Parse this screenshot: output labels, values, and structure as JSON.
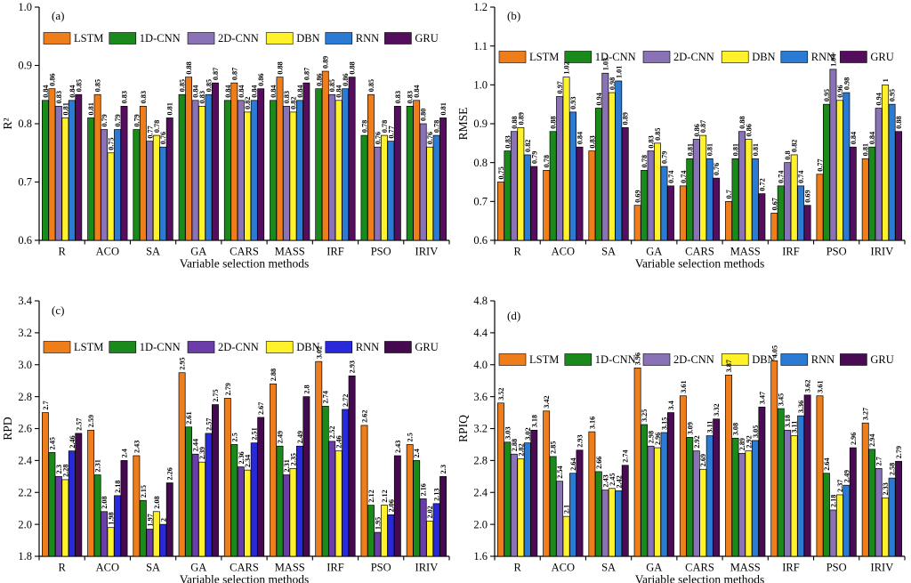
{
  "figure": {
    "background": "#ffffff",
    "panel_labels": [
      "(a)",
      "(b)",
      "(c)",
      "(d)"
    ]
  },
  "chart_data": [
    {
      "id": "a",
      "type": "bar",
      "panel_label": "(a)",
      "ylabel": "R²",
      "xlabel": "Variable selection methods",
      "ylim": [
        0.6,
        1.0
      ],
      "ytick_step": 0.1,
      "grid": false,
      "legend_position": "top-inside-horizontal",
      "categories": [
        "R",
        "ACO",
        "SA",
        "GA",
        "CARS",
        "MASS",
        "IRF",
        "PSO",
        "IRIV"
      ],
      "legend": [
        "LSTM",
        "1D-CNN",
        "2D-CNN",
        "DBN",
        "RNN",
        "GRU"
      ],
      "colors": {
        "LSTM": "#EF7D1A",
        "1D-CNN": "#1A8A1A",
        "2D-CNN": "#8973B6",
        "DBN": "#FFF12A",
        "RNN": "#2B7BD4",
        "GRU": "#550D5E"
      },
      "series": [
        {
          "name": "1D-CNN",
          "values": [
            "0.84",
            "0.81",
            "0.79",
            "0.85",
            "0.84",
            "0.84",
            "0.86",
            "0.78",
            "0.83"
          ]
        },
        {
          "name": "LSTM",
          "values": [
            "0.86",
            "0.85",
            "0.83",
            "0.88",
            "0.87",
            "0.88",
            "0.89",
            "0.85",
            "0.84"
          ]
        },
        {
          "name": "2D-CNN",
          "values": [
            "0.83",
            "0.79",
            "0.77",
            "0.84",
            "0.84",
            "0.83",
            "0.85",
            "0.76",
            "0.80"
          ]
        },
        {
          "name": "DBN",
          "values": [
            "0.81",
            "0.75",
            "0.78",
            "0.83",
            "0.82",
            "0.82",
            "0.84",
            "0.78",
            "0.76"
          ]
        },
        {
          "name": "RNN",
          "values": [
            "0.84",
            "0.79",
            "0.76",
            "0.85",
            "0.84",
            "0.84",
            "0.86",
            "0.77",
            "0.78"
          ]
        },
        {
          "name": "GRU",
          "values": [
            "0.85",
            "0.83",
            "0.81",
            "0.87",
            "0.86",
            "0.87",
            "0.88",
            "0.83",
            "0.81"
          ]
        }
      ]
    },
    {
      "id": "b",
      "type": "bar",
      "panel_label": "(b)",
      "ylabel": "RMSE",
      "xlabel": "Variable selection methods",
      "ylim": [
        0.6,
        1.2
      ],
      "ytick_step": 0.1,
      "grid": false,
      "legend_position": "top-inside-horizontal",
      "categories": [
        "R",
        "ACO",
        "SA",
        "GA",
        "CARS",
        "MASS",
        "IRF",
        "PSO",
        "IRIV"
      ],
      "legend": [
        "LSTM",
        "1D-CNN",
        "2D-CNN",
        "DBN",
        "RNN",
        "GRU"
      ],
      "colors": {
        "LSTM": "#EF7D1A",
        "1D-CNN": "#1A8A1A",
        "2D-CNN": "#8973B6",
        "DBN": "#FFF12A",
        "RNN": "#2B7BD4",
        "GRU": "#550D5E"
      },
      "series": [
        {
          "name": "LSTM",
          "values": [
            "0.75",
            "0.78",
            "0.83",
            "0.69",
            "0.74",
            "0.7",
            "0.67",
            "0.77",
            "0.81"
          ]
        },
        {
          "name": "1D-CNN",
          "values": [
            "0.83",
            "0.88",
            "0.94",
            "0.78",
            "0.81",
            "0.81",
            "0.74",
            "0.95",
            "0.84"
          ]
        },
        {
          "name": "2D-CNN",
          "values": [
            "0.88",
            "0.97",
            "1.03",
            "0.83",
            "0.86",
            "0.88",
            "0.8",
            "1.04",
            "0.94"
          ]
        },
        {
          "name": "DBN",
          "values": [
            "0.89",
            "1.02",
            "0.98",
            "0.85",
            "0.87",
            "0.86",
            "0.82",
            "0.96",
            "1"
          ]
        },
        {
          "name": "RNN",
          "values": [
            "0.82",
            "0.93",
            "1.01",
            "0.79",
            "0.81",
            "0.81",
            "0.74",
            "0.98",
            "0.95"
          ]
        },
        {
          "name": "GRU",
          "values": [
            "0.79",
            "0.84",
            "0.89",
            "0.74",
            "0.76",
            "0.72",
            "0.69",
            "0.84",
            "0.88"
          ]
        }
      ]
    },
    {
      "id": "c",
      "type": "bar",
      "panel_label": "(c)",
      "ylabel": "RPD",
      "xlabel": "Variable selection methods",
      "ylim": [
        1.8,
        3.4
      ],
      "ytick_step": 0.2,
      "grid": false,
      "legend_position": "top-inside-horizontal",
      "categories": [
        "R",
        "ACO",
        "SA",
        "GA",
        "CARS",
        "MASS",
        "IRF",
        "PSO",
        "IRIV"
      ],
      "legend": [
        "LSTM",
        "1D-CNN",
        "2D-CNN",
        "DBN",
        "RNN",
        "GRU"
      ],
      "colors": {
        "LSTM": "#EF7D1A",
        "1D-CNN": "#1A8A1A",
        "2D-CNN": "#6A3DA8",
        "DBN": "#FFF12A",
        "RNN": "#2929DC",
        "GRU": "#45094F"
      },
      "series": [
        {
          "name": "LSTM",
          "values": [
            "2.7",
            "2.59",
            "2.43",
            "2.95",
            "2.79",
            "2.88",
            "3.02",
            "2.62",
            "2.5"
          ]
        },
        {
          "name": "1D-CNN",
          "values": [
            "2.45",
            "2.31",
            "2.15",
            "2.61",
            "2.5",
            "2.49",
            "2.74",
            "2.12",
            "2.4"
          ]
        },
        {
          "name": "2D-CNN",
          "values": [
            "2.3",
            "2.08",
            "1.97",
            "2.44",
            "2.36",
            "2.31",
            "2.52",
            "1.95",
            "2.16"
          ]
        },
        {
          "name": "DBN",
          "values": [
            "2.28",
            "1.98",
            "2.08",
            "2.39",
            "2.34",
            "2.35",
            "2.46",
            "2.12",
            "2.02"
          ]
        },
        {
          "name": "RNN",
          "values": [
            "2.46",
            "2.18",
            "2",
            "2.57",
            "2.51",
            "2.49",
            "2.72",
            "2.06",
            "2.13"
          ]
        },
        {
          "name": "GRU",
          "values": [
            "2.57",
            "2.4",
            "2.26",
            "2.75",
            "2.67",
            "2.8",
            "2.93",
            "2.43",
            "2.3"
          ]
        }
      ]
    },
    {
      "id": "d",
      "type": "bar",
      "panel_label": "(d)",
      "ylabel": "RPIQ",
      "xlabel": "Variable selection methods",
      "ylim": [
        1.6,
        4.8
      ],
      "ytick_step": 0.4,
      "grid": false,
      "legend_position": "top-inside-horizontal",
      "categories": [
        "R",
        "ACO",
        "SA",
        "GA",
        "CARS",
        "MASS",
        "IRF",
        "PSO",
        "IRIV"
      ],
      "legend": [
        "LSTM",
        "1D-CNN",
        "2D-CNN",
        "DBN",
        "RNN",
        "GRU"
      ],
      "colors": {
        "LSTM": "#EF7D1A",
        "1D-CNN": "#1A8A1A",
        "2D-CNN": "#8973B6",
        "DBN": "#FFF12A",
        "RNN": "#2B7BD4",
        "GRU": "#4A0B55"
      },
      "series": [
        {
          "name": "LSTM",
          "values": [
            "3.52",
            "3.42",
            "3.16",
            "3.96",
            "3.61",
            "3.87",
            "4.05",
            "3.61",
            "3.27"
          ]
        },
        {
          "name": "1D-CNN",
          "values": [
            "3.03",
            "2.85",
            "2.66",
            "3.25",
            "3.09",
            "3.08",
            "3.45",
            "2.64",
            "2.94"
          ]
        },
        {
          "name": "2D-CNN",
          "values": [
            "2.88",
            "2.54",
            "2.43",
            "2.98",
            "2.92",
            "2.89",
            "3.18",
            "2.18",
            "2.7"
          ]
        },
        {
          "name": "DBN",
          "values": [
            "2.82",
            "2.1",
            "2.45",
            "2.96",
            "2.69",
            "2.92",
            "3.11",
            "2.37",
            "2.33"
          ]
        },
        {
          "name": "RNN",
          "values": [
            "3.02",
            "2.64",
            "2.42",
            "3.15",
            "3.11",
            "3.05",
            "3.36",
            "2.49",
            "2.58"
          ]
        },
        {
          "name": "GRU",
          "values": [
            "3.18",
            "2.93",
            "2.74",
            "3.4",
            "3.32",
            "3.47",
            "3.62",
            "2.96",
            "2.79"
          ]
        }
      ]
    }
  ]
}
